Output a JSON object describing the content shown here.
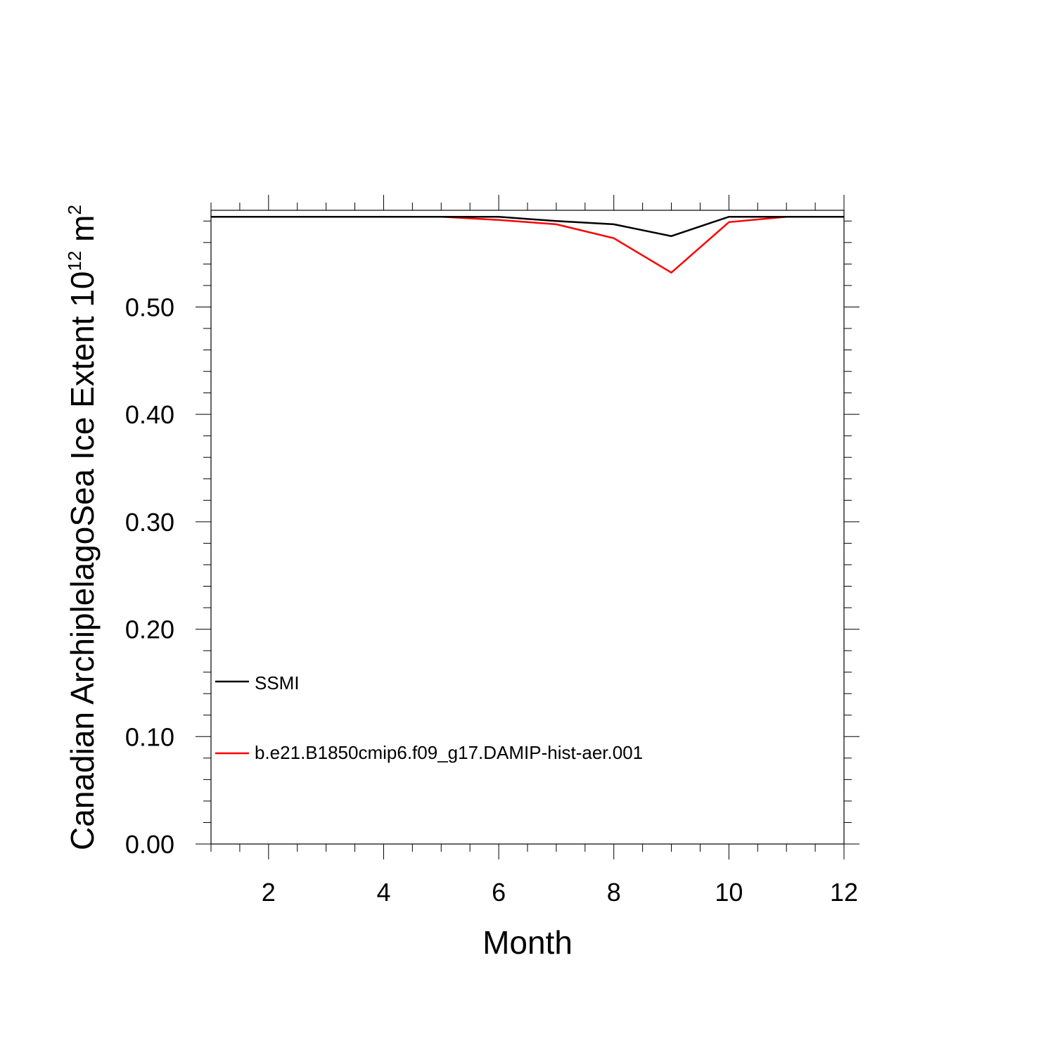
{
  "chart_data": {
    "type": "line",
    "title": "",
    "xlabel": "Month",
    "ylabel": "Canadian ArchiplelagoSea Ice Extent 10",
    "ylabel_exponent": "12",
    "ylabel_unit": " m",
    "ylabel_unit_exponent": "2",
    "xlim": [
      1,
      12
    ],
    "ylim": [
      0,
      0.59
    ],
    "x_ticks": [
      2,
      4,
      6,
      8,
      10,
      12
    ],
    "x_tick_labels": [
      "2",
      "4",
      "6",
      "8",
      "10",
      "12"
    ],
    "y_ticks": [
      0,
      0.1,
      0.2,
      0.3,
      0.4,
      0.5
    ],
    "y_tick_labels": [
      "0.00",
      "0.10",
      "0.20",
      "0.30",
      "0.40",
      "0.50"
    ],
    "grid": false,
    "legend_position": "bottom-left",
    "x": [
      1,
      2,
      3,
      4,
      5,
      6,
      7,
      8,
      9,
      10,
      11,
      12
    ],
    "series": [
      {
        "name": "SSMI",
        "color": "#000000",
        "values": [
          0.584,
          0.584,
          0.584,
          0.584,
          0.584,
          0.584,
          0.58,
          0.577,
          0.566,
          0.584,
          0.584,
          0.584
        ]
      },
      {
        "name": "b.e21.B1850cmip6.f09_g17.DAMIP-hist-aer.001",
        "color": "#ff0000",
        "values": [
          0.584,
          0.584,
          0.584,
          0.584,
          0.584,
          0.581,
          0.577,
          0.564,
          0.532,
          0.579,
          0.584,
          0.584
        ]
      }
    ]
  }
}
